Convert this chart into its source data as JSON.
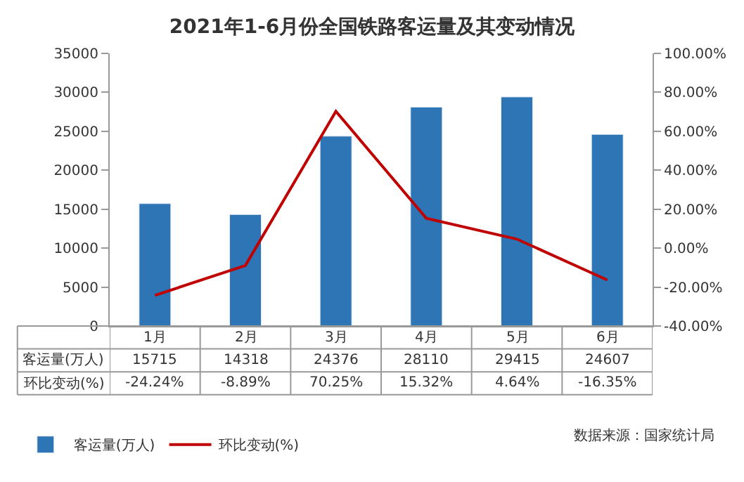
{
  "chart_data": {
    "type": "bar",
    "title": "2021年1-6月份全国铁路客运量及其变动情况",
    "categories": [
      "1月",
      "2月",
      "3月",
      "4月",
      "5月",
      "6月"
    ],
    "series": [
      {
        "name": "客运量(万人)",
        "color": "#2e75b6",
        "values": [
          15715,
          14318,
          24376,
          28110,
          29415,
          24607
        ],
        "value_labels": [
          "15715",
          "14318",
          "24376",
          "28110",
          "29415",
          "24607"
        ]
      },
      {
        "name": "环比变动(%)",
        "type": "line",
        "axis": "y2",
        "color": "#c00000",
        "values": [
          -24.24,
          -8.89,
          70.25,
          15.32,
          4.64,
          -16.35
        ],
        "value_labels": [
          "-24.24%",
          "-8.89%",
          "70.25%",
          "15.32%",
          "4.64%",
          "-16.35%"
        ]
      }
    ],
    "ylim": [
      0,
      35000
    ],
    "yticks": [
      0,
      5000,
      10000,
      15000,
      20000,
      25000,
      30000,
      35000
    ],
    "y2lim": [
      -40,
      100
    ],
    "y2ticks": [
      {
        "value": -40,
        "label": "-40.00%"
      },
      {
        "value": -20,
        "label": "-20.00%"
      },
      {
        "value": 0,
        "label": "0.00%"
      },
      {
        "value": 20,
        "label": "20.00%"
      },
      {
        "value": 40,
        "label": "40.00%"
      },
      {
        "value": 60,
        "label": "60.00%"
      },
      {
        "value": 80,
        "label": "80.00%"
      },
      {
        "value": 100,
        "label": "100.00%"
      }
    ],
    "legend": "bottom left",
    "marker": "none",
    "line_style": "solid",
    "annotations": [
      "数据来源：国家统计局"
    ]
  }
}
